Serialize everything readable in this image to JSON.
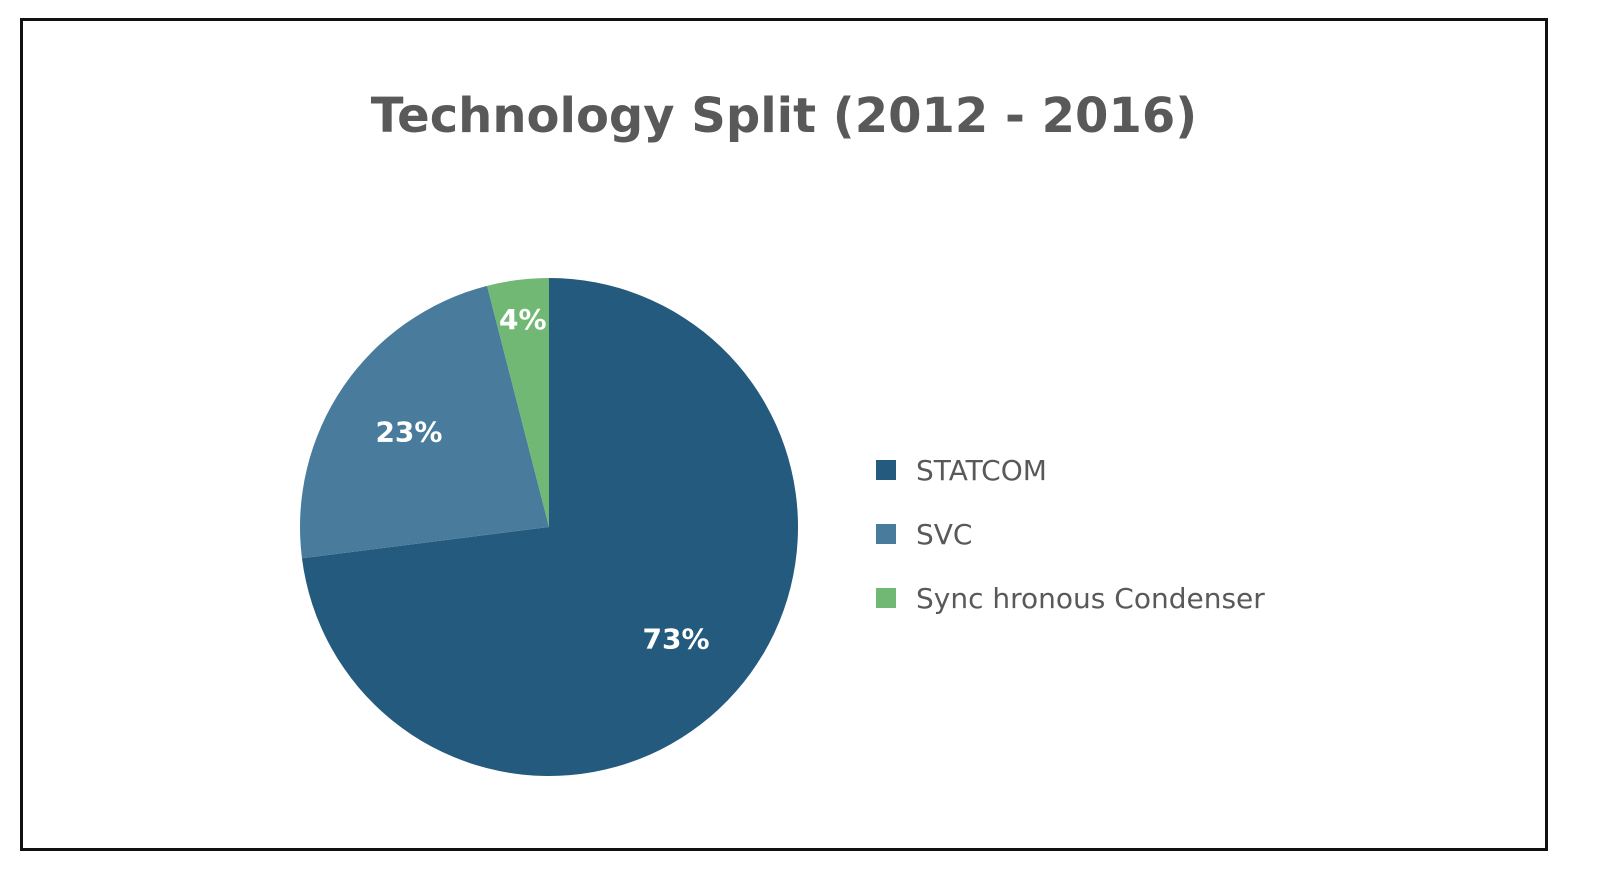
{
  "chart_data": {
    "type": "pie",
    "title": "Technology Split (2012 - 2016)",
    "slices": [
      {
        "label": "STATCOM",
        "value": 73,
        "display": "73%",
        "color": "#235A7D"
      },
      {
        "label": "SVC",
        "value": 23,
        "display": "23%",
        "color": "#487B9C"
      },
      {
        "label": "Sync hronous Condenser",
        "value": 4,
        "display": "4%",
        "color": "#70B874"
      }
    ],
    "legend_position": "right",
    "start_angle_deg": 0,
    "direction": "clockwise"
  }
}
